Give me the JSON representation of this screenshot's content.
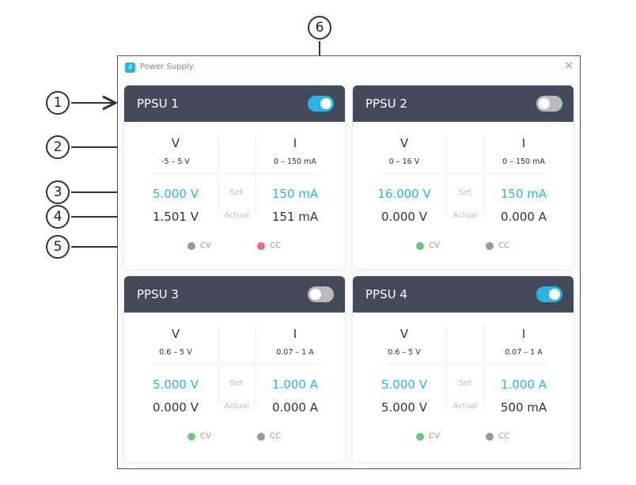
{
  "window": {
    "title": "Power Supply",
    "close": "×",
    "icon": "app-logo-icon"
  },
  "colors": {
    "accent": "#2bb3e3",
    "header": "#434b5a",
    "cv_active": "#6fc37a",
    "cc_active": "#ee6a80",
    "inactive": "#999999"
  },
  "labels": {
    "v": "V",
    "i": "I",
    "set": "Set",
    "actual": "Actual",
    "cv": "CV",
    "cc": "CC"
  },
  "units": [
    {
      "name": "PPSU 1",
      "enabled": true,
      "v_range": "-5 – 5 V",
      "i_range": "0 – 150 mA",
      "v_set": "5.000 V",
      "i_set": "150 mA",
      "v_actual": "1.501 V",
      "i_actual": "151 mA",
      "cv": "inactive",
      "cc": "active"
    },
    {
      "name": "PPSU 2",
      "enabled": false,
      "v_range": "0 – 16 V",
      "i_range": "0 – 150 mA",
      "v_set": "16.000 V",
      "i_set": "150 mA",
      "v_actual": "0.000 V",
      "i_actual": "0.000 A",
      "cv": "active",
      "cc": "inactive"
    },
    {
      "name": "PPSU 3",
      "enabled": false,
      "v_range": "0.6 – 5 V",
      "i_range": "0.07 – 1 A",
      "v_set": "5.000 V",
      "i_set": "1.000 A",
      "v_actual": "0.000 V",
      "i_actual": "0.000 A",
      "cv": "active",
      "cc": "inactive"
    },
    {
      "name": "PPSU 4",
      "enabled": true,
      "v_range": "0.6 – 5 V",
      "i_range": "0.07 – 1 A",
      "v_set": "5.000 V",
      "i_set": "1.000 A",
      "v_actual": "5.000 V",
      "i_actual": "500 mA",
      "cv": "active",
      "cc": "inactive"
    }
  ],
  "callouts": [
    "1",
    "2",
    "3",
    "4",
    "5",
    "6"
  ]
}
